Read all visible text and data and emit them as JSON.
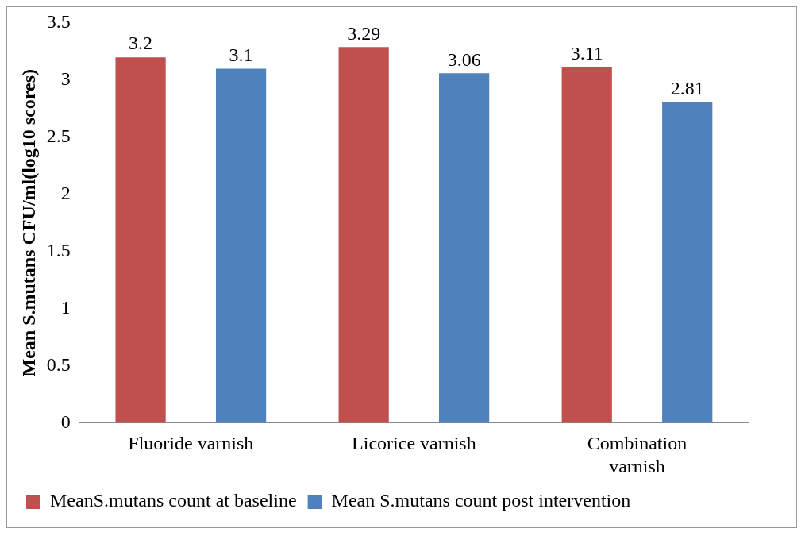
{
  "chart_data": {
    "type": "bar",
    "ylabel": "Mean S.mutans CFU/ml(log10 scores)",
    "categories": [
      "Fluoride varnish",
      "Licorice varnish",
      "Combination varnish"
    ],
    "series": [
      {
        "name": "MeanS.mutans count at baseline",
        "color": "#c0504d",
        "values": [
          3.2,
          3.29,
          3.11
        ]
      },
      {
        "name": "Mean S.mutans count post intervention",
        "color": "#4f81bd",
        "values": [
          3.1,
          3.06,
          2.81
        ]
      }
    ],
    "ylim": [
      0,
      3.5
    ],
    "yticks": [
      0,
      0.5,
      1,
      1.5,
      2,
      2.5,
      3,
      3.5
    ],
    "data_labels": true,
    "legend": "bottom",
    "grid": false
  }
}
